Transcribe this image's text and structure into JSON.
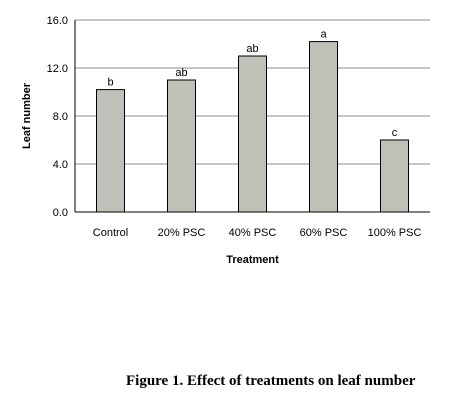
{
  "chart_data": {
    "type": "bar",
    "categories": [
      "Control",
      "20% PSC",
      "40% PSC",
      "60% PSC",
      "100% PSC"
    ],
    "values": [
      10.2,
      11.0,
      13.0,
      14.2,
      6.0
    ],
    "significance_labels": [
      "b",
      "ab",
      "ab",
      "a",
      "c"
    ],
    "title": "",
    "xlabel": "Treatment",
    "ylabel": "Leaf number",
    "ylim": [
      0,
      16
    ],
    "yticks": [
      "0.0",
      "4.0",
      "8.0",
      "12.0",
      "16.0"
    ],
    "grid": true,
    "colors": {
      "bar_fill": "#c0c0b8",
      "bar_stroke": "#000000",
      "grid": "#8c8c8c"
    }
  },
  "caption": "Figure 1. Effect of treatments on leaf number"
}
